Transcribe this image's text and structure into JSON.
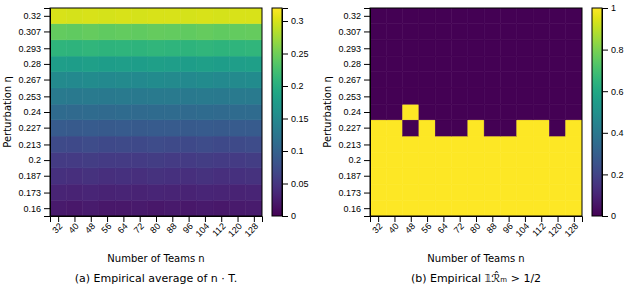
{
  "chart_data": [
    {
      "type": "heatmap",
      "title": "(a) Empirical average of n · T.",
      "x_label": "Number of Teams n",
      "y_label": "Perturbation η",
      "x": [
        32,
        40,
        48,
        56,
        64,
        72,
        80,
        88,
        96,
        104,
        112,
        120,
        128
      ],
      "y": [
        0.16,
        0.173,
        0.187,
        0.2,
        0.213,
        0.227,
        0.24,
        0.253,
        0.267,
        0.28,
        0.293,
        0.307,
        0.32
      ],
      "values": [
        [
          0.022,
          0.021,
          0.023,
          0.02,
          0.021,
          0.022,
          0.021,
          0.022,
          0.021,
          0.022,
          0.021,
          0.022,
          0.023
        ],
        [
          0.032,
          0.031,
          0.033,
          0.031,
          0.032,
          0.031,
          0.033,
          0.032,
          0.031,
          0.033,
          0.032,
          0.031,
          0.032
        ],
        [
          0.044,
          0.043,
          0.045,
          0.043,
          0.044,
          0.043,
          0.045,
          0.044,
          0.043,
          0.045,
          0.043,
          0.044,
          0.045
        ],
        [
          0.056,
          0.055,
          0.057,
          0.055,
          0.056,
          0.055,
          0.057,
          0.056,
          0.055,
          0.057,
          0.055,
          0.056,
          0.057
        ],
        [
          0.072,
          0.071,
          0.073,
          0.071,
          0.072,
          0.071,
          0.073,
          0.072,
          0.071,
          0.073,
          0.071,
          0.072,
          0.073
        ],
        [
          0.09,
          0.089,
          0.091,
          0.089,
          0.09,
          0.089,
          0.091,
          0.09,
          0.089,
          0.091,
          0.089,
          0.09,
          0.091
        ],
        [
          0.11,
          0.109,
          0.111,
          0.109,
          0.11,
          0.109,
          0.111,
          0.11,
          0.109,
          0.111,
          0.109,
          0.11,
          0.111
        ],
        [
          0.13,
          0.129,
          0.131,
          0.129,
          0.13,
          0.129,
          0.131,
          0.13,
          0.129,
          0.131,
          0.129,
          0.13,
          0.131
        ],
        [
          0.152,
          0.151,
          0.153,
          0.151,
          0.152,
          0.151,
          0.153,
          0.152,
          0.151,
          0.153,
          0.151,
          0.152,
          0.153
        ],
        [
          0.178,
          0.177,
          0.179,
          0.177,
          0.178,
          0.177,
          0.179,
          0.178,
          0.177,
          0.179,
          0.177,
          0.178,
          0.179
        ],
        [
          0.208,
          0.207,
          0.209,
          0.207,
          0.208,
          0.207,
          0.209,
          0.208,
          0.207,
          0.209,
          0.207,
          0.208,
          0.209
        ],
        [
          0.243,
          0.242,
          0.244,
          0.242,
          0.243,
          0.242,
          0.244,
          0.243,
          0.242,
          0.244,
          0.242,
          0.243,
          0.244
        ],
        [
          0.3,
          0.299,
          0.301,
          0.299,
          0.3,
          0.299,
          0.301,
          0.3,
          0.299,
          0.301,
          0.299,
          0.3,
          0.301
        ]
      ],
      "xlim": [
        28,
        132
      ],
      "ylim": [
        0.1535,
        0.3265
      ],
      "xticks": [
        32,
        40,
        48,
        56,
        64,
        72,
        80,
        88,
        96,
        104,
        112,
        120,
        128
      ],
      "yticks": [
        0.16,
        0.173,
        0.187,
        0.2,
        0.213,
        0.227,
        0.24,
        0.253,
        0.267,
        0.28,
        0.293,
        0.307,
        0.32
      ],
      "color": "viridis",
      "clim": [
        0.0,
        0.32
      ],
      "cticks": [
        0,
        0.05,
        0.1,
        0.15,
        0.2,
        0.25,
        0.3
      ]
    },
    {
      "type": "heatmap",
      "title": "(b) Empirical 𝟙ℛ̂ₘ > 1/2",
      "x_label": "Number of Teams n",
      "y_label": "Perturbation η",
      "x": [
        32,
        40,
        48,
        56,
        64,
        72,
        80,
        88,
        96,
        104,
        112,
        120,
        128
      ],
      "y": [
        0.16,
        0.173,
        0.187,
        0.2,
        0.213,
        0.227,
        0.24,
        0.253,
        0.267,
        0.28,
        0.293,
        0.307,
        0.32
      ],
      "values": [
        [
          1,
          1,
          1,
          1,
          1,
          1,
          1,
          1,
          1,
          1,
          1,
          1,
          1
        ],
        [
          1,
          1,
          1,
          1,
          1,
          1,
          1,
          1,
          1,
          1,
          1,
          1,
          1
        ],
        [
          1,
          1,
          1,
          1,
          1,
          1,
          1,
          1,
          1,
          1,
          1,
          1,
          1
        ],
        [
          1,
          1,
          1,
          1,
          1,
          1,
          1,
          1,
          1,
          1,
          1,
          1,
          1
        ],
        [
          1,
          1,
          1,
          1,
          1,
          1,
          1,
          1,
          1,
          1,
          1,
          1,
          1
        ],
        [
          1,
          1,
          0,
          1,
          0,
          0,
          1,
          0,
          0,
          1,
          1,
          0,
          1
        ],
        [
          0,
          0,
          1,
          0,
          0,
          0,
          0,
          0,
          0,
          0,
          0,
          0,
          0
        ],
        [
          0,
          0,
          0,
          0,
          0,
          0,
          0,
          0,
          0,
          0,
          0,
          0,
          0
        ],
        [
          0,
          0,
          0,
          0,
          0,
          0,
          0,
          0,
          0,
          0,
          0,
          0,
          0
        ],
        [
          0,
          0,
          0,
          0,
          0,
          0,
          0,
          0,
          0,
          0,
          0,
          0,
          0
        ],
        [
          0,
          0,
          0,
          0,
          0,
          0,
          0,
          0,
          0,
          0,
          0,
          0,
          0
        ],
        [
          0,
          0,
          0,
          0,
          0,
          0,
          0,
          0,
          0,
          0,
          0,
          0,
          0
        ],
        [
          0,
          0,
          0,
          0,
          0,
          0,
          0,
          0,
          0,
          0,
          0,
          0,
          0
        ]
      ],
      "xlim": [
        28,
        132
      ],
      "ylim": [
        0.1535,
        0.3265
      ],
      "xticks": [
        32,
        40,
        48,
        56,
        64,
        72,
        80,
        88,
        96,
        104,
        112,
        120,
        128
      ],
      "yticks": [
        0.16,
        0.173,
        0.187,
        0.2,
        0.213,
        0.227,
        0.24,
        0.253,
        0.267,
        0.28,
        0.293,
        0.307,
        0.32
      ],
      "color": "viridis",
      "clim": [
        0.0,
        1.0
      ],
      "cticks": [
        0,
        0.2,
        0.4,
        0.6,
        0.8,
        1
      ]
    }
  ]
}
